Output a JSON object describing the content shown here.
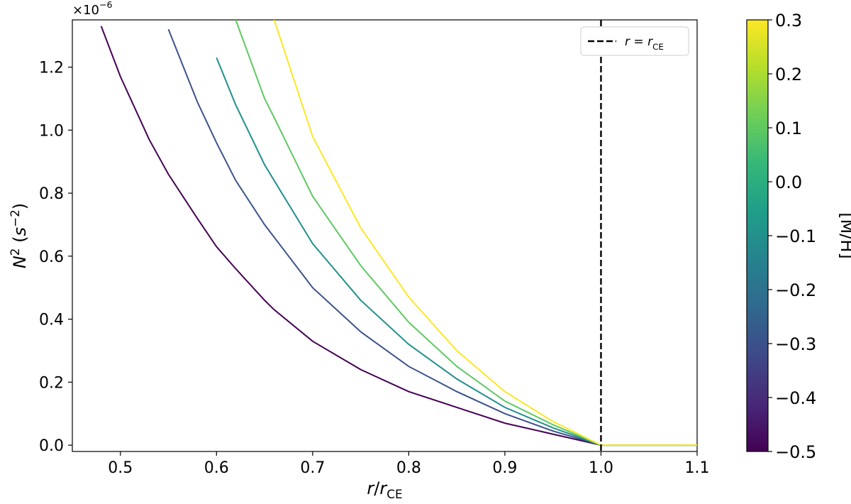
{
  "chart_data": {
    "type": "line",
    "xlabel": "r/r_CE",
    "ylabel": "N^2 (s^-2)",
    "y_offset": "×10^-6",
    "xlim": [
      0.45,
      1.1
    ],
    "ylim": [
      -0.02,
      1.35
    ],
    "x_ticks": [
      "0.5",
      "0.6",
      "0.7",
      "0.8",
      "0.9",
      "1.0",
      "1.1"
    ],
    "y_ticks": [
      "0.0",
      "0.2",
      "0.4",
      "0.6",
      "0.8",
      "1.0",
      "1.2"
    ],
    "x": [
      0.45,
      0.48,
      0.5,
      0.53,
      0.55,
      0.58,
      0.6,
      0.62,
      0.65,
      0.66,
      0.7,
      0.75,
      0.8,
      0.85,
      0.9,
      0.95,
      1.0,
      1.05,
      1.1
    ],
    "series": [
      {
        "metallicity": -0.5,
        "color": "#440154",
        "values": [
          null,
          1.33,
          1.17,
          0.97,
          0.86,
          0.72,
          0.63,
          0.56,
          0.46,
          0.43,
          0.33,
          0.24,
          0.17,
          0.12,
          0.07,
          0.035,
          0.0,
          0.0,
          0.0
        ]
      },
      {
        "metallicity": -0.3,
        "color": "#3b528b",
        "values": [
          null,
          null,
          null,
          null,
          1.32,
          1.09,
          0.96,
          0.84,
          0.7,
          0.66,
          0.5,
          0.36,
          0.25,
          0.17,
          0.1,
          0.045,
          0.0,
          0.0,
          0.0
        ]
      },
      {
        "metallicity": -0.1,
        "color": "#21908c",
        "values": [
          null,
          null,
          null,
          null,
          null,
          null,
          1.23,
          1.08,
          0.89,
          0.84,
          0.64,
          0.46,
          0.32,
          0.21,
          0.12,
          0.055,
          0.0,
          0.0,
          0.0
        ]
      },
      {
        "metallicity": 0.1,
        "color": "#5ec962",
        "values": [
          null,
          null,
          null,
          null,
          null,
          null,
          null,
          1.35,
          1.1,
          1.04,
          0.79,
          0.57,
          0.39,
          0.25,
          0.14,
          0.065,
          0.0,
          0.0,
          0.0
        ]
      },
      {
        "metallicity": 0.3,
        "color": "#fde725",
        "values": [
          null,
          null,
          null,
          null,
          null,
          null,
          null,
          null,
          null,
          1.35,
          0.98,
          0.69,
          0.47,
          0.3,
          0.17,
          0.075,
          0.0,
          0.0,
          0.0
        ]
      }
    ],
    "vline": {
      "x": 1.0,
      "style": "dashed",
      "color": "#000000"
    },
    "legend": {
      "placement": "top-right",
      "entries": [
        "r = r_CE"
      ]
    },
    "colorbar": {
      "label": "[M/H]",
      "range": [
        -0.5,
        0.3
      ],
      "ticks": [
        "0.3",
        "0.2",
        "0.1",
        "0.0",
        "−0.1",
        "−0.2",
        "−0.3",
        "−0.4",
        "−0.5"
      ],
      "colors": [
        "#fde725",
        "#5ec962",
        "#21908c",
        "#3b528b",
        "#440154"
      ]
    },
    "grid": false
  }
}
